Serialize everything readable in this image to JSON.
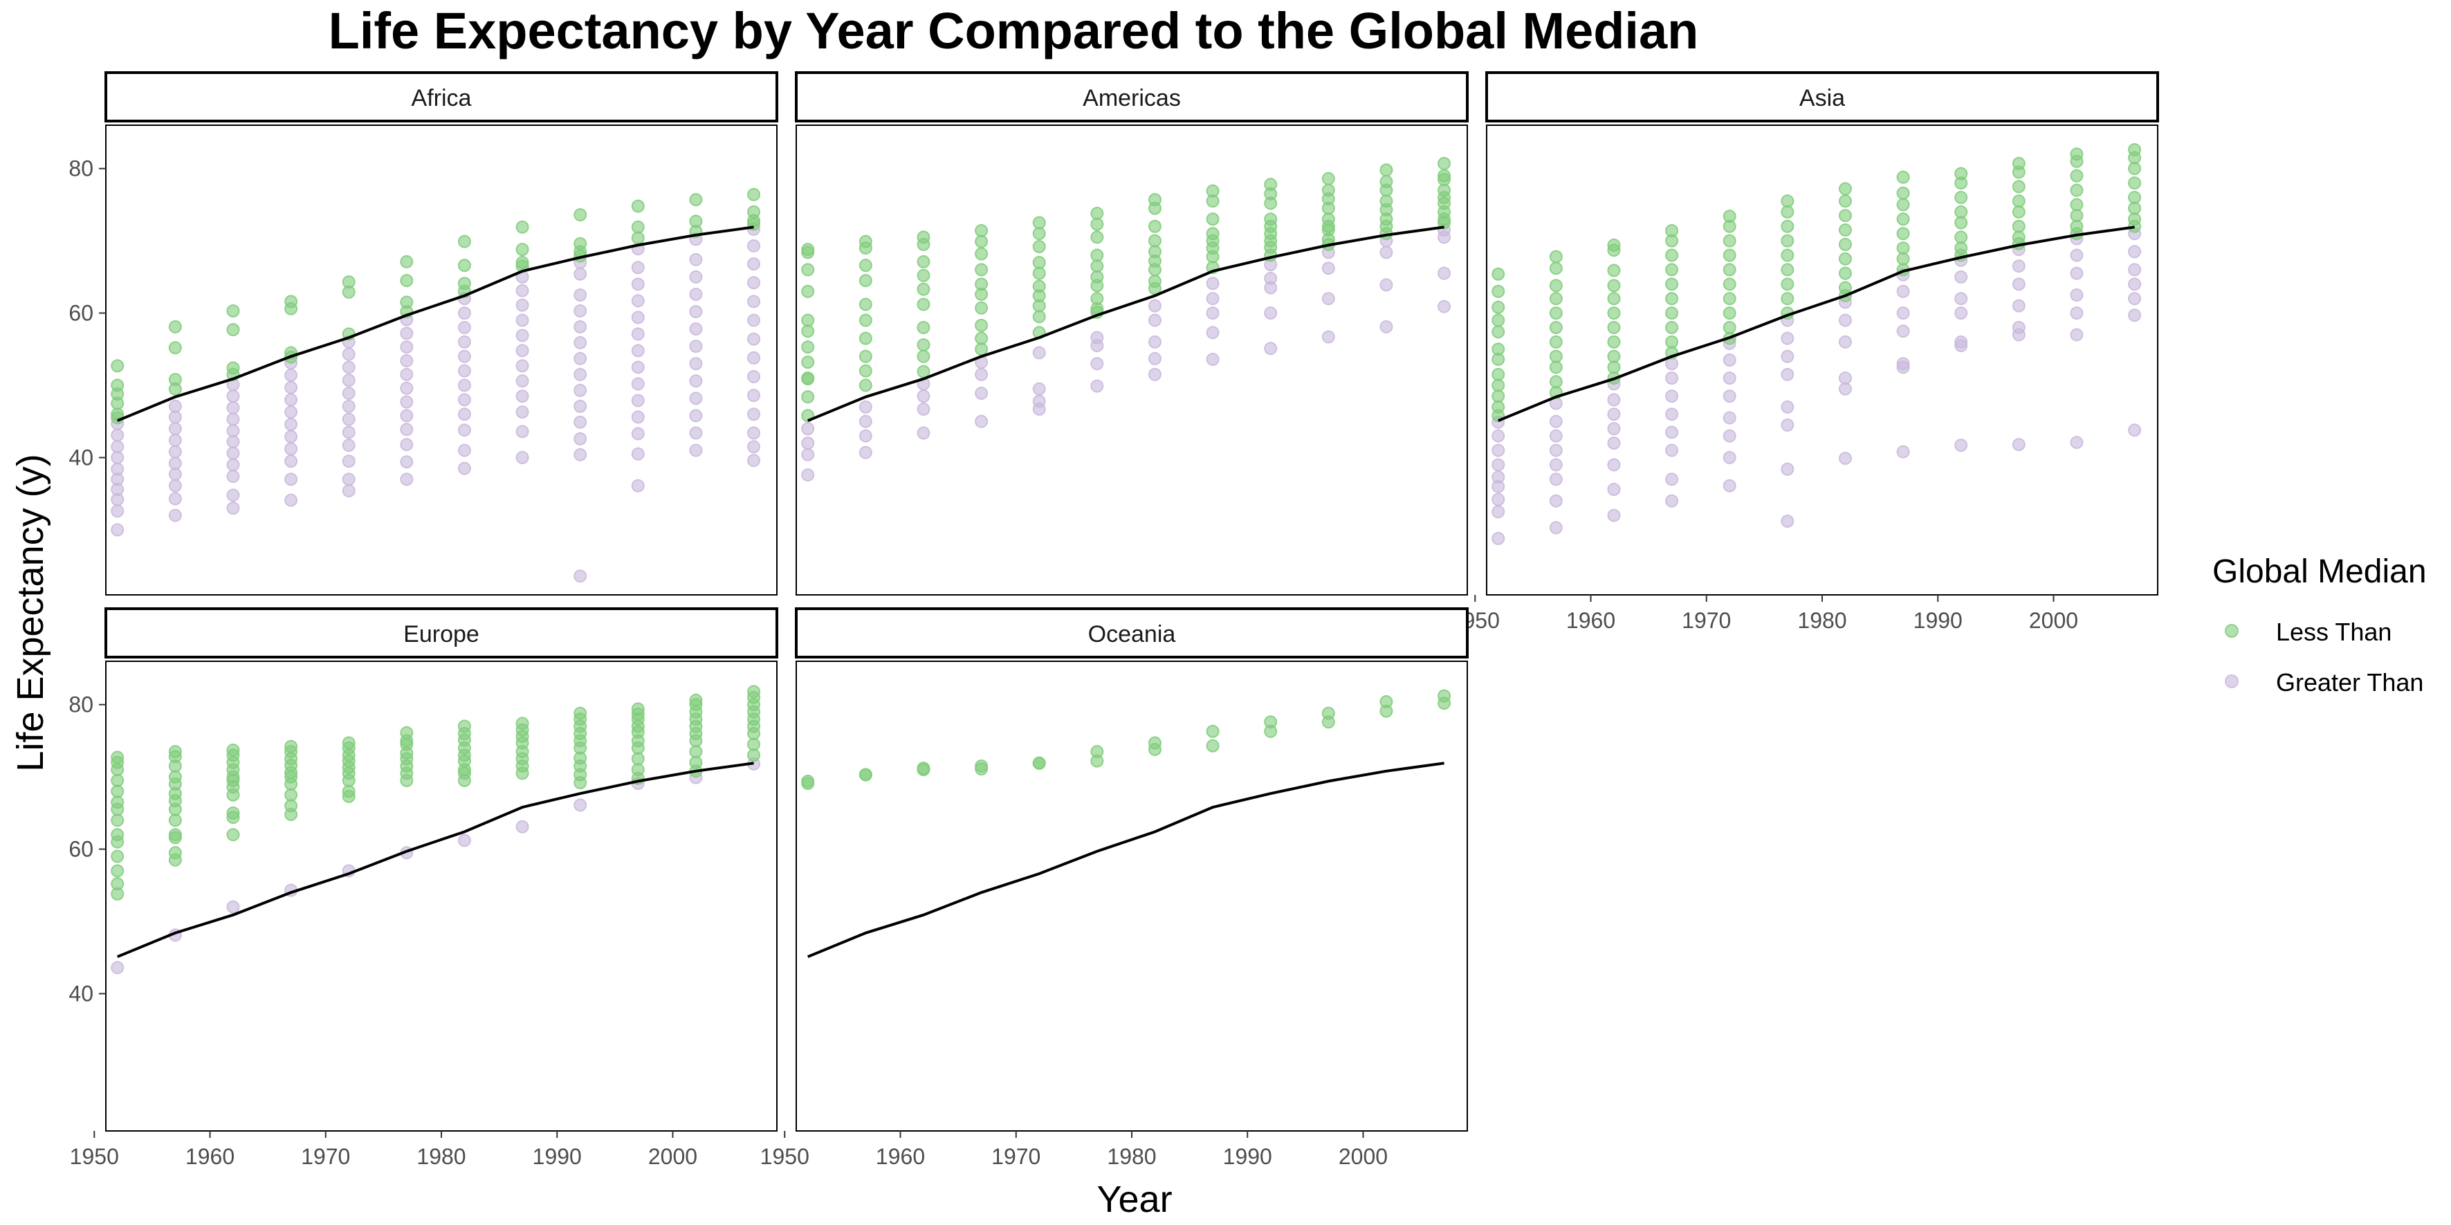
{
  "chart_data": {
    "type": "scatter",
    "title": "Life Expectancy by Year Compared to the Global Median",
    "xlabel": "Year",
    "ylabel": "Life Expectancy (y)",
    "xlim": [
      1951,
      2009
    ],
    "ylim": [
      21,
      86
    ],
    "x_ticks": [
      1950,
      1960,
      1970,
      1980,
      1990,
      2000
    ],
    "y_ticks": [
      40,
      60,
      80
    ],
    "legend": {
      "title": "Global Median",
      "position": "right",
      "entries": [
        {
          "label": "Less Than",
          "color": "#7fcc7a"
        },
        {
          "label": "Greater Than",
          "color": "#c8b8dc"
        }
      ]
    },
    "colors": {
      "less_than": "#7fcc7a",
      "greater_than": "#c8b8dc",
      "median_line": "#000000"
    },
    "years": [
      1952,
      1957,
      1962,
      1967,
      1972,
      1977,
      1982,
      1987,
      1992,
      1997,
      2002,
      2007
    ],
    "global_median": [
      45.1,
      48.4,
      50.9,
      54.0,
      56.6,
      59.7,
      62.4,
      65.8,
      67.7,
      69.4,
      70.8,
      71.9
    ],
    "panels": [
      {
        "name": "Africa",
        "less_than": [
          [
            52.7,
            50.0,
            48.8,
            47.5,
            46.0,
            45.5
          ],
          [
            58.1,
            55.2,
            50.8,
            49.5
          ],
          [
            60.3,
            57.7,
            52.4,
            51.5
          ],
          [
            61.6,
            60.6,
            54.5,
            53.9
          ],
          [
            64.3,
            62.9,
            57.1
          ],
          [
            67.1,
            64.5,
            61.5,
            60.2
          ],
          [
            69.9,
            66.6,
            64.1,
            63.0
          ],
          [
            71.9,
            68.8,
            67.0,
            66.5
          ],
          [
            73.6,
            69.6,
            68.5,
            67.9
          ],
          [
            74.8,
            71.9,
            70.4
          ],
          [
            75.7,
            72.7,
            71.3
          ],
          [
            76.4,
            74.0,
            72.8,
            72.3
          ]
        ],
        "greater_than": [
          [
            44.7,
            43.1,
            41.5,
            40.0,
            38.4,
            37.0,
            35.6,
            34.2,
            32.6,
            30.0
          ],
          [
            47.1,
            45.6,
            44.0,
            42.4,
            40.8,
            39.2,
            37.7,
            36.1,
            34.3,
            32.0
          ],
          [
            50.1,
            48.5,
            46.9,
            45.3,
            43.7,
            42.2,
            40.6,
            39.0,
            37.4,
            34.8,
            33.0
          ],
          [
            53.1,
            51.4,
            49.7,
            48.0,
            46.3,
            44.6,
            42.9,
            41.2,
            39.5,
            37.0,
            34.1
          ],
          [
            56.0,
            54.3,
            52.5,
            50.7,
            48.9,
            47.1,
            45.3,
            43.5,
            41.7,
            39.5,
            37.0,
            35.4
          ],
          [
            59.1,
            57.2,
            55.3,
            53.4,
            51.5,
            49.6,
            47.7,
            45.8,
            43.9,
            41.8,
            39.4,
            37.0
          ],
          [
            62.0,
            60.0,
            58.0,
            56.0,
            54.0,
            52.0,
            50.0,
            48.0,
            46.0,
            43.8,
            41.0,
            38.5
          ],
          [
            65.0,
            63.1,
            61.1,
            59.0,
            56.9,
            54.8,
            52.7,
            50.6,
            48.5,
            46.3,
            43.6,
            40.0
          ],
          [
            67.0,
            65.4,
            62.5,
            60.3,
            58.1,
            55.9,
            53.7,
            51.5,
            49.3,
            47.1,
            44.9,
            42.6,
            40.4,
            23.6
          ],
          [
            68.9,
            66.3,
            64.0,
            61.7,
            59.4,
            57.1,
            54.8,
            52.5,
            50.2,
            47.9,
            45.6,
            43.3,
            40.5,
            36.1
          ],
          [
            70.2,
            67.4,
            65.0,
            62.6,
            60.2,
            57.8,
            55.4,
            53.0,
            50.6,
            48.2,
            45.8,
            43.4,
            41.0
          ],
          [
            71.6,
            69.3,
            66.8,
            64.2,
            61.6,
            59.0,
            56.4,
            53.8,
            51.2,
            48.6,
            46.0,
            43.4,
            41.5,
            39.6
          ]
        ]
      },
      {
        "name": "Americas",
        "less_than": [
          [
            68.8,
            68.4,
            66.0,
            63.0,
            59.0,
            57.5,
            55.3,
            53.2,
            51.0,
            50.9,
            48.4,
            45.8
          ],
          [
            69.9,
            69.0,
            66.6,
            64.5,
            61.2,
            59.0,
            56.5,
            54.0,
            52.0,
            50.0
          ],
          [
            70.5,
            69.5,
            67.1,
            65.2,
            63.3,
            61.2,
            58.0,
            55.6,
            54.0,
            51.9
          ],
          [
            71.4,
            69.9,
            68.2,
            66.0,
            64.0,
            62.6,
            60.7,
            58.3,
            56.5,
            55.0
          ],
          [
            72.5,
            71.0,
            69.2,
            67.0,
            65.5,
            63.7,
            62.4,
            61.0,
            59.5,
            57.3
          ],
          [
            73.8,
            72.3,
            70.5,
            68.0,
            66.5,
            65.0,
            63.8,
            62.0,
            60.6,
            60.1
          ],
          [
            75.7,
            74.5,
            72.0,
            70.0,
            68.5,
            67.2,
            66.0,
            64.4,
            63.4
          ],
          [
            76.9,
            75.5,
            73.0,
            71.0,
            70.0,
            69.0,
            67.8,
            66.3
          ],
          [
            77.8,
            76.5,
            75.2,
            73.0,
            72.0,
            71.0,
            70.0,
            69.1,
            68.0
          ],
          [
            78.6,
            77.0,
            75.8,
            74.5,
            73.0,
            72.0,
            71.5,
            70.2,
            69.5
          ],
          [
            79.8,
            78.2,
            77.0,
            75.5,
            74.3,
            73.0,
            72.0,
            71.0
          ],
          [
            80.7,
            79.0,
            78.5,
            77.0,
            76.0,
            75.2,
            74.0,
            73.0,
            72.5
          ]
        ],
        "greater_than": [
          [
            44.0,
            42.0,
            40.4,
            37.6
          ],
          [
            47.0,
            45.0,
            43.0,
            40.7
          ],
          [
            50.2,
            48.5,
            46.7,
            43.4
          ],
          [
            53.2,
            51.5,
            48.9,
            45.0
          ],
          [
            54.5,
            49.5,
            47.8,
            46.7
          ],
          [
            56.6,
            55.5,
            53.0,
            49.9
          ],
          [
            61.0,
            59.0,
            56.0,
            53.7,
            51.5
          ],
          [
            64.1,
            62.0,
            60.0,
            57.3,
            53.6
          ],
          [
            66.7,
            64.8,
            63.5,
            60.0,
            55.1
          ],
          [
            68.4,
            66.2,
            62.0,
            56.7
          ],
          [
            70.0,
            68.4,
            63.9,
            58.1
          ],
          [
            71.5,
            70.5,
            65.5,
            60.9
          ]
        ]
      },
      {
        "name": "Asia",
        "less_than": [
          [
            65.4,
            63.0,
            60.8,
            59.0,
            57.4,
            55.0,
            53.6,
            51.5,
            50.0,
            48.5,
            47.0,
            45.8
          ],
          [
            67.8,
            66.2,
            63.8,
            62.0,
            60.0,
            58.0,
            56.0,
            54.0,
            52.5,
            50.5,
            49.0
          ],
          [
            69.4,
            68.7,
            65.9,
            63.8,
            62.0,
            60.0,
            58.0,
            56.0,
            54.0,
            52.5,
            51.0
          ],
          [
            71.4,
            70.0,
            68.0,
            66.0,
            64.0,
            62.0,
            60.0,
            58.0,
            56.0,
            54.5
          ],
          [
            73.4,
            72.0,
            70.0,
            68.0,
            66.0,
            64.0,
            62.0,
            60.0,
            58.0,
            56.5
          ],
          [
            75.5,
            74.0,
            72.0,
            70.0,
            68.0,
            66.0,
            64.0,
            62.0,
            60.0
          ],
          [
            77.2,
            75.5,
            73.5,
            71.5,
            69.5,
            67.5,
            65.5,
            63.5,
            62.4
          ],
          [
            78.8,
            76.6,
            75.0,
            73.0,
            71.0,
            69.0,
            67.5,
            66.0
          ],
          [
            79.3,
            78.0,
            76.0,
            74.0,
            72.5,
            70.5,
            69.0,
            68.0
          ],
          [
            80.7,
            79.5,
            77.5,
            75.5,
            74.0,
            72.0,
            70.5,
            69.6
          ],
          [
            82.0,
            81.0,
            79.0,
            77.0,
            75.0,
            73.5,
            72.0,
            71.0
          ],
          [
            82.6,
            81.5,
            80.0,
            78.0,
            76.0,
            74.5,
            73.0,
            72.0
          ]
        ],
        "greater_than": [
          [
            44.9,
            43.0,
            41.0,
            39.0,
            37.3,
            36.0,
            34.2,
            32.5,
            28.8
          ],
          [
            47.5,
            45.0,
            43.0,
            41.0,
            39.0,
            37.0,
            34.0,
            30.3
          ],
          [
            50.2,
            48.0,
            46.0,
            44.0,
            42.0,
            39.0,
            35.6,
            32.0
          ],
          [
            53.0,
            51.0,
            48.5,
            46.0,
            43.5,
            41.0,
            37.0,
            34.0
          ],
          [
            55.8,
            53.5,
            51.0,
            48.5,
            45.5,
            43.0,
            40.0,
            36.1
          ],
          [
            59.0,
            56.5,
            54.0,
            51.5,
            47.0,
            44.5,
            38.4,
            31.2
          ],
          [
            61.5,
            59.0,
            56.0,
            51.0,
            49.5,
            39.9
          ],
          [
            65.3,
            63.0,
            60.0,
            57.5,
            53.0,
            52.5,
            40.8
          ],
          [
            67.3,
            65.0,
            62.0,
            60.0,
            56.0,
            55.5,
            41.7
          ],
          [
            68.8,
            66.5,
            64.0,
            61.0,
            58.0,
            57.0,
            41.8
          ],
          [
            70.3,
            68.0,
            65.5,
            62.5,
            60.0,
            57.0,
            42.1
          ],
          [
            71.0,
            68.5,
            66.0,
            64.0,
            62.0,
            59.7,
            43.8
          ]
        ]
      },
      {
        "name": "Europe",
        "less_than": [
          [
            72.7,
            72.0,
            71.0,
            69.5,
            68.0,
            66.5,
            65.5,
            64.0,
            62.0,
            61.0,
            59.0,
            57.0,
            55.2,
            53.8
          ],
          [
            73.5,
            72.8,
            71.5,
            70.0,
            69.0,
            67.7,
            66.7,
            65.5,
            64.0,
            62.0,
            61.6,
            59.5,
            58.5
          ],
          [
            73.7,
            73.0,
            72.0,
            71.0,
            70.0,
            69.5,
            68.6,
            67.5,
            65.0,
            64.4,
            62.0
          ],
          [
            74.2,
            73.5,
            72.5,
            71.6,
            70.6,
            70.0,
            69.0,
            67.5,
            66.0,
            64.8
          ],
          [
            74.7,
            74.0,
            73.0,
            72.2,
            71.3,
            70.5,
            69.5,
            68.0,
            67.3
          ],
          [
            76.1,
            75.0,
            74.5,
            73.3,
            72.5,
            71.5,
            70.5,
            69.5
          ],
          [
            77.0,
            76.0,
            75.1,
            74.0,
            73.0,
            72.2,
            71.0,
            70.5,
            69.5
          ],
          [
            77.4,
            76.5,
            75.6,
            74.7,
            73.5,
            72.5,
            71.5,
            70.5
          ],
          [
            78.8,
            78.0,
            77.0,
            76.0,
            75.0,
            74.0,
            72.6,
            71.5,
            70.3,
            69.2
          ],
          [
            79.4,
            78.7,
            78.0,
            77.0,
            76.2,
            75.0,
            74.0,
            72.5,
            71.0,
            69.8
          ],
          [
            80.6,
            80.0,
            79.0,
            78.0,
            77.0,
            76.0,
            75.0,
            73.5,
            72.0,
            70.8
          ],
          [
            81.8,
            81.0,
            80.0,
            79.0,
            78.0,
            77.0,
            76.0,
            74.5,
            73.0
          ]
        ],
        "greater_than": [
          [
            43.6
          ],
          [
            48.1
          ],
          [
            52.0
          ],
          [
            54.3
          ],
          [
            57.0
          ],
          [
            59.5
          ],
          [
            61.2
          ],
          [
            63.1
          ],
          [
            66.1
          ],
          [
            69.1
          ],
          [
            69.9
          ],
          [
            71.8
          ]
        ]
      },
      {
        "name": "Oceania",
        "less_than": [
          [
            69.4,
            69.1
          ],
          [
            70.3,
            70.3
          ],
          [
            71.2,
            71.0
          ],
          [
            71.5,
            71.1
          ],
          [
            71.9,
            71.9
          ],
          [
            73.5,
            72.2
          ],
          [
            74.7,
            73.8
          ],
          [
            76.3,
            74.3
          ],
          [
            77.6,
            76.3
          ],
          [
            78.8,
            77.6
          ],
          [
            80.4,
            79.1
          ],
          [
            81.2,
            80.2
          ]
        ],
        "greater_than": [
          [],
          [],
          [],
          [],
          [],
          [],
          [],
          [],
          [],
          [],
          [],
          []
        ]
      }
    ]
  }
}
